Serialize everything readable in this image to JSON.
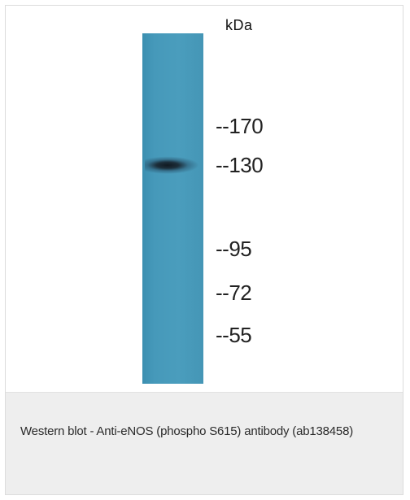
{
  "figure": {
    "unit_label": "kDa",
    "markers": [
      "--170",
      "--130",
      "--95",
      "--72",
      "--55"
    ]
  },
  "caption": {
    "text": "Western blot - Anti-eNOS (phospho S615) antibody (ab138458)"
  },
  "colors": {
    "lane": "#4a9dbd",
    "band": "#1a2a36",
    "caption_background": "#eeeeee"
  }
}
